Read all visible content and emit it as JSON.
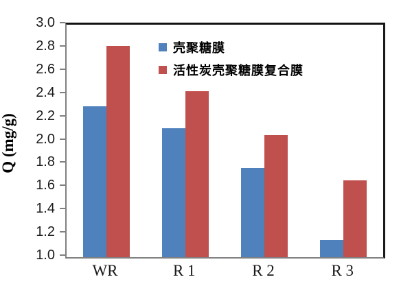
{
  "chart_data": {
    "type": "bar",
    "title": "",
    "xlabel": "",
    "ylabel": "Q (mg/g)",
    "categories": [
      "WR",
      "R 1",
      "R 2",
      "R 3"
    ],
    "series": [
      {
        "name": "壳聚糖膜",
        "color": "#4F81BD",
        "values": [
          2.3,
          2.11,
          1.77,
          1.15
        ]
      },
      {
        "name": "活性炭壳聚糖膜复合膜",
        "color": "#C0504D",
        "values": [
          2.82,
          2.43,
          2.05,
          1.66
        ]
      }
    ],
    "ylim": [
      1.0,
      3.0
    ],
    "ytick_step": 0.2,
    "ytick_labels": [
      "1.0",
      "1.2",
      "1.4",
      "1.6",
      "1.8",
      "2.0",
      "2.2",
      "2.4",
      "2.6",
      "2.8",
      "3.0"
    ],
    "grid": false,
    "legend_position": "inside-top-center"
  },
  "style_colors": {
    "series_blue": "#4F81BD",
    "series_red": "#C0504D",
    "axis_gray": "#808080",
    "frame_black": "#111111",
    "text": "#1a1a1a"
  }
}
